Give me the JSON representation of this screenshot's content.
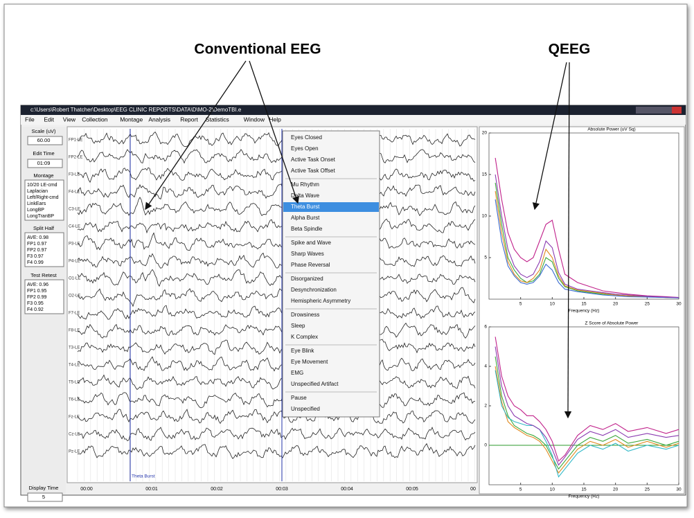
{
  "annotations": {
    "conventional": "Conventional EEG",
    "qeeg": "QEEG"
  },
  "window": {
    "title": "c:\\Users\\Robert Thatcher\\Desktop\\EEG CLINIC REPORTS\\DATA\\D\\MO-2\\DemoTBI.e",
    "menu": [
      "File",
      "Edit",
      "View",
      "Collection",
      "Montage",
      "Analysis",
      "Report",
      "Statistics",
      "Window",
      "Help"
    ]
  },
  "left_panel": {
    "scale_label": "Scale (uV)",
    "scale_value": "60.00",
    "edit_time_label": "Edit Time",
    "edit_time_value": "01:09",
    "montage_label": "Montage",
    "montages": [
      "10/20 LE-cmd",
      "Laplacian",
      "Left/Right-cmd",
      "LinkEars",
      "LongBP",
      "LongTranBP"
    ],
    "split_half_label": "Split Half",
    "split_half": [
      "AVE: 0.98",
      "FP1  0.97",
      "FP2  0.97",
      "F3  0.97",
      "F4  0.99"
    ],
    "test_retest_label": "Test Retest",
    "test_retest": [
      "AVE: 0.96",
      "FP1  0.95",
      "FP2  0.99",
      "F3  0.95",
      "F4  0.92"
    ],
    "display_time_label": "Display Time",
    "display_time_value": "5"
  },
  "eeg": {
    "channels": [
      "FP1-LE",
      "FP2-LE",
      "F3-LE",
      "F4-LE",
      "C3-LE",
      "C4-LE",
      "P3-LE",
      "P4-LE",
      "O1-LE",
      "O2-LE",
      "F7-LE",
      "F8-LE",
      "T3-LE",
      "T4-LE",
      "T5-LE",
      "T6-LE",
      "Fz-LE",
      "Cz-LE",
      "Pz-LE"
    ],
    "time_labels": [
      "00:00",
      "00:01",
      "00:02",
      "00:03",
      "00:04",
      "00:05",
      "00"
    ],
    "event_label": "Theta Burst"
  },
  "context_menu": {
    "groups": [
      [
        "Eyes Closed",
        "Eyes Open",
        "Active Task Onset",
        "Active Task Offset"
      ],
      [
        "Mu Rhythm",
        "Delta Wave",
        "Theta Burst",
        "Alpha Burst",
        "Beta Spindle"
      ],
      [
        "Spike and Wave",
        "Sharp Waves",
        "Phase Reversal"
      ],
      [
        "Disorganized",
        "Desynchronization",
        "Hemispheric Asymmetry"
      ],
      [
        "Drowsiness",
        "Sleep",
        "K Complex"
      ],
      [
        "Eye Blink",
        "Eye Movement",
        "EMG",
        "Unspecified Artifact"
      ],
      [
        "Pause",
        "Unspecified"
      ]
    ],
    "highlighted": {
      "group": 1,
      "item": 2
    }
  },
  "chart_data": [
    {
      "type": "line",
      "title": "Absolute Power (uV Sq)",
      "x_label": "Frequency (Hz)",
      "x": [
        1,
        2,
        3,
        4,
        5,
        6,
        7,
        8,
        9,
        10,
        11,
        12,
        14,
        16,
        18,
        20,
        22,
        25,
        28,
        30
      ],
      "xlim": [
        0,
        30
      ],
      "xticks": [
        5,
        10,
        15,
        20,
        25,
        30
      ],
      "ylim": [
        0,
        20
      ],
      "yticks": [
        5,
        10,
        15,
        20
      ],
      "series": [
        {
          "color": "#c0208a",
          "values": [
            17,
            12,
            8,
            6,
            5,
            4.5,
            5,
            7,
            9,
            9.5,
            6,
            3,
            2,
            1.5,
            1,
            0.8,
            0.6,
            0.4,
            0.3,
            0.2
          ]
        },
        {
          "color": "#3aa83a",
          "values": [
            14,
            9,
            5,
            3.5,
            2.5,
            2,
            2.2,
            3,
            5,
            4.5,
            2.5,
            1.5,
            1,
            0.8,
            0.6,
            0.5,
            0.4,
            0.3,
            0.2,
            0.2
          ]
        },
        {
          "color": "#e08a20",
          "values": [
            13,
            8,
            4.5,
            3,
            2.2,
            2,
            2.5,
            3.5,
            6,
            5,
            2.8,
            1.6,
            1.1,
            0.9,
            0.7,
            0.5,
            0.4,
            0.3,
            0.2,
            0.2
          ]
        },
        {
          "color": "#3a6ad0",
          "values": [
            12,
            7,
            4,
            2.8,
            2,
            1.8,
            2,
            2.8,
            4.2,
            3.5,
            2,
            1.2,
            0.9,
            0.7,
            0.5,
            0.4,
            0.3,
            0.25,
            0.2,
            0.15
          ]
        },
        {
          "color": "#8a3ab0",
          "values": [
            15,
            10,
            6,
            4,
            3,
            2.6,
            3,
            4.5,
            7,
            6.2,
            3.2,
            1.8,
            1.2,
            1,
            0.8,
            0.6,
            0.5,
            0.35,
            0.25,
            0.2
          ]
        }
      ]
    },
    {
      "type": "line",
      "title": "Z Score of Absolute Power",
      "x_label": "Frequency (Hz)",
      "x": [
        1,
        2,
        3,
        4,
        5,
        6,
        7,
        8,
        9,
        10,
        11,
        12,
        14,
        16,
        18,
        20,
        22,
        25,
        28,
        30
      ],
      "xlim": [
        0,
        30
      ],
      "xticks": [
        5,
        10,
        15,
        20,
        25,
        30
      ],
      "ylim": [
        -2,
        6
      ],
      "yticks": [
        0,
        2,
        4,
        6
      ],
      "series": [
        {
          "color": "#c0208a",
          "values": [
            5.5,
            3.5,
            2.5,
            2,
            1.8,
            1.5,
            1.5,
            1.2,
            0.8,
            0.2,
            -0.8,
            -0.5,
            0.5,
            1,
            0.8,
            1.1,
            0.7,
            0.9,
            0.6,
            0.8
          ]
        },
        {
          "color": "#3aa83a",
          "values": [
            4.5,
            2.5,
            1.5,
            1,
            0.8,
            0.6,
            0.5,
            0.3,
            0,
            -0.6,
            -1.2,
            -0.8,
            0,
            0.4,
            0.2,
            0.5,
            0.1,
            0.3,
            0,
            0.2
          ]
        },
        {
          "color": "#e08a20",
          "values": [
            4,
            2.2,
            1.2,
            0.9,
            0.7,
            0.5,
            0.4,
            0.2,
            -0.2,
            -0.8,
            -1.4,
            -1,
            -0.2,
            0.2,
            0,
            0.3,
            -0.1,
            0.2,
            -0.1,
            0.1
          ]
        },
        {
          "color": "#30b8c8",
          "values": [
            3.8,
            2,
            1.4,
            1.2,
            1.1,
            1,
            1,
            0.8,
            0.2,
            -0.5,
            -1.6,
            -1.2,
            -0.4,
            0,
            -0.2,
            0.1,
            -0.3,
            0,
            -0.2,
            0
          ]
        },
        {
          "color": "#8a3ab0",
          "values": [
            5,
            3,
            2,
            1.5,
            1.3,
            1.1,
            1,
            0.8,
            0.4,
            -0.2,
            -1,
            -0.6,
            0.3,
            0.7,
            0.5,
            0.8,
            0.4,
            0.6,
            0.4,
            0.5
          ]
        }
      ]
    }
  ]
}
